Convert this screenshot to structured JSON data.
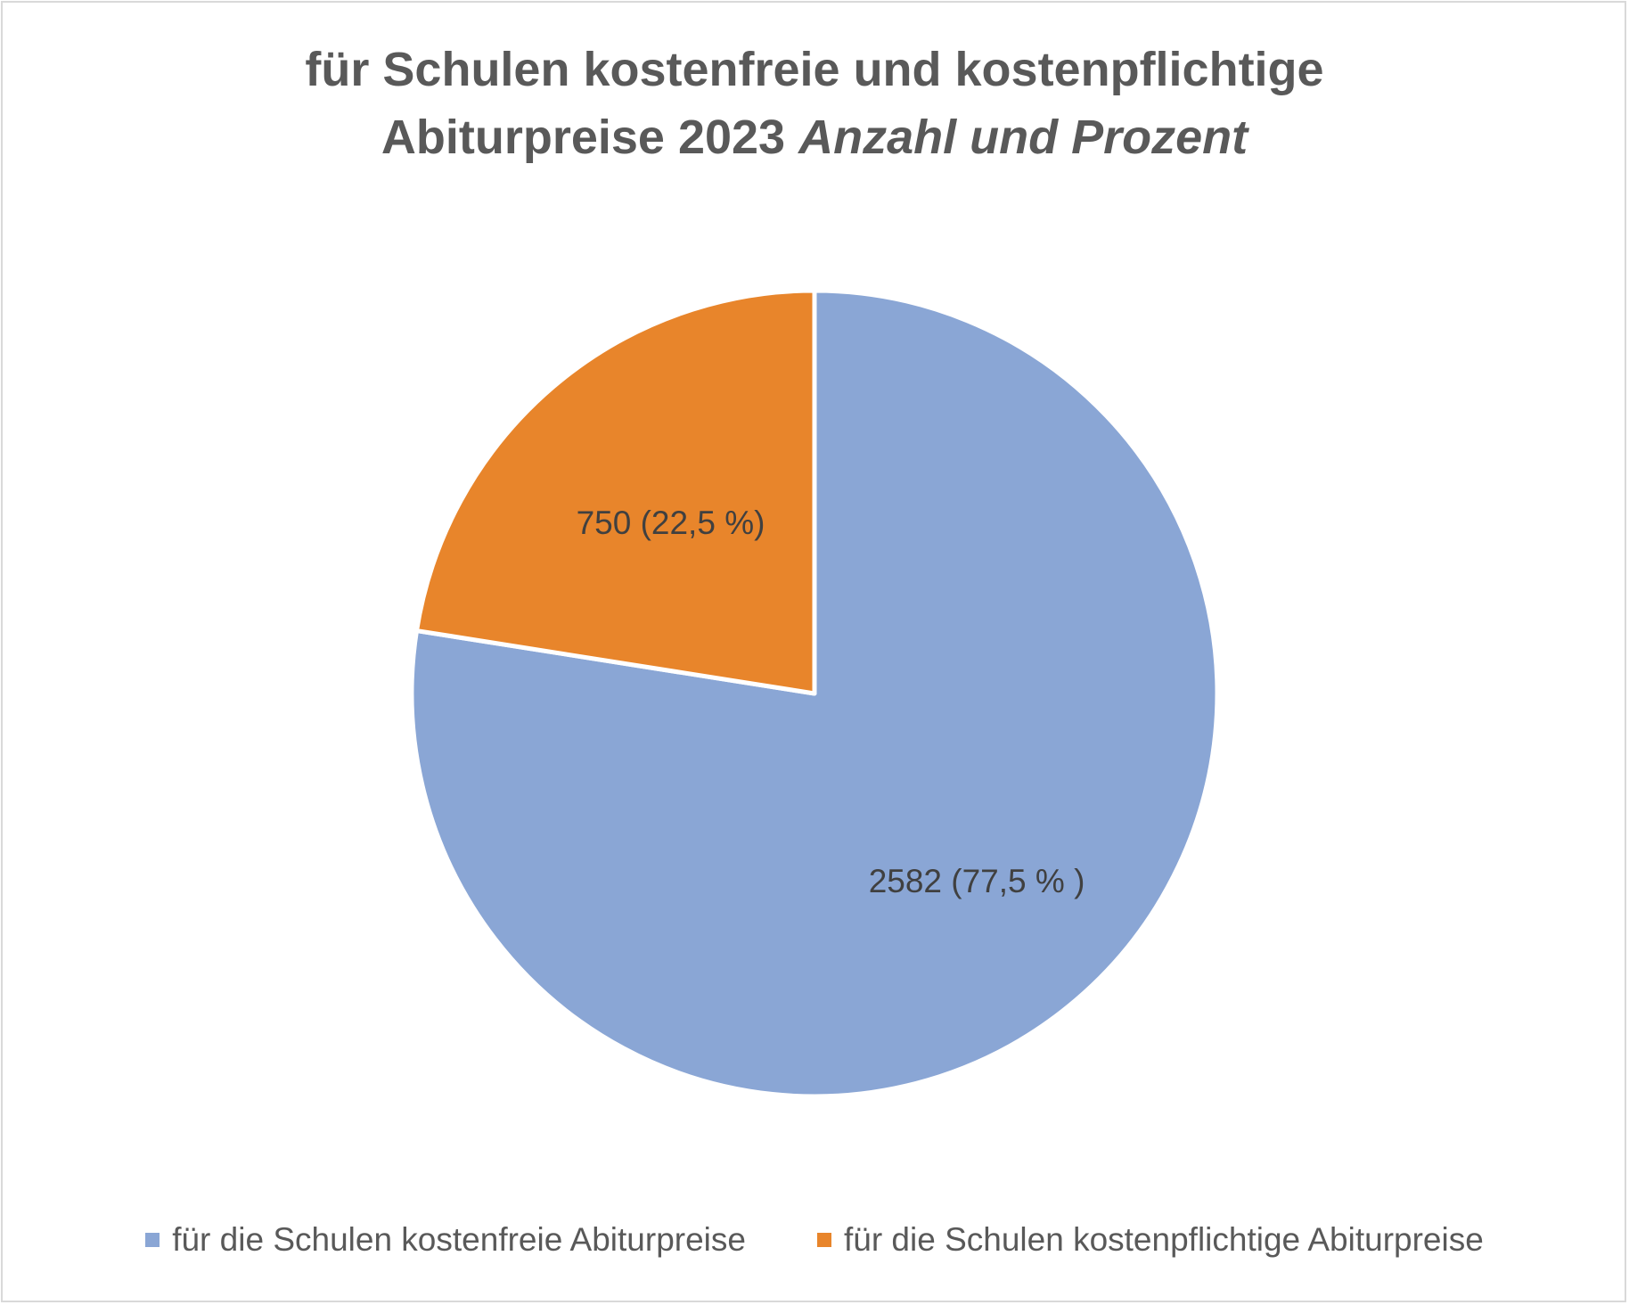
{
  "chart_data": {
    "type": "pie",
    "title_line1": "für Schulen kostenfreie und kostenpflichtige",
    "title_line2_bold": "Abiturpreise 2023",
    "title_line2_italic": "Anzahl und Prozent",
    "slices": [
      {
        "name": "für die Schulen kostenfreie Abiturpreise",
        "value": 2582,
        "percent": 77.5,
        "label": "2582 (77,5 % )",
        "color": "#8AA6D5"
      },
      {
        "name": "für die Schulen kostenpflichtige Abiturpreise",
        "value": 750,
        "percent": 22.5,
        "label": "750 (22,5 %)",
        "color": "#E8852B"
      }
    ],
    "start_angle_deg": 0,
    "direction": "clockwise",
    "legend_position": "bottom"
  }
}
